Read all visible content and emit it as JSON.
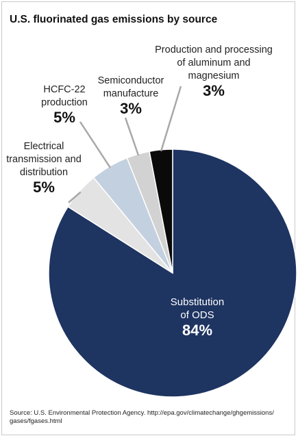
{
  "title": "U.S. fluorinated gas emissions by source",
  "source": "Source: U.S. Environmental Protection Agency. http://epa.gov/climatechange/ghgemissions/ gases/fgases.html",
  "chart_data": {
    "type": "pie",
    "title": "U.S. fluorinated gas emissions by source",
    "slices": [
      {
        "label_lines": [
          "Substitution",
          "of ODS"
        ],
        "value": 84,
        "value_label": "84%",
        "color": "#1e3461"
      },
      {
        "label_lines": [
          "Electrical",
          "transmission and",
          "distribution"
        ],
        "value": 5,
        "value_label": "5%",
        "color": "#e3e3e3"
      },
      {
        "label_lines": [
          "HCFC-22",
          "production"
        ],
        "value": 5,
        "value_label": "5%",
        "color": "#c3d0df"
      },
      {
        "label_lines": [
          "Semiconductor",
          "manufacture"
        ],
        "value": 3,
        "value_label": "3%",
        "color": "#d2d2d2"
      },
      {
        "label_lines": [
          "Production and processing",
          "of aluminum and",
          "magnesium"
        ],
        "value": 3,
        "value_label": "3%",
        "color": "#0a0a0a"
      }
    ]
  }
}
